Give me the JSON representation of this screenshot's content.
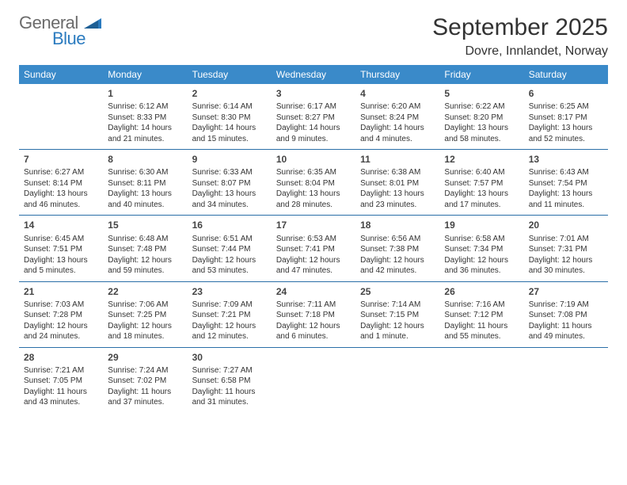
{
  "logo": {
    "word1": "General",
    "word2": "Blue"
  },
  "title": "September 2025",
  "location": "Dovre, Innlandet, Norway",
  "colors": {
    "header_bg": "#3a8ac9",
    "row_border": "#2b6fa8",
    "logo_gray": "#6b6b6b",
    "logo_blue": "#2b7bbf"
  },
  "day_names": [
    "Sunday",
    "Monday",
    "Tuesday",
    "Wednesday",
    "Thursday",
    "Friday",
    "Saturday"
  ],
  "weeks": [
    [
      null,
      {
        "n": "1",
        "sr": "Sunrise: 6:12 AM",
        "ss": "Sunset: 8:33 PM",
        "dl": "Daylight: 14 hours and 21 minutes."
      },
      {
        "n": "2",
        "sr": "Sunrise: 6:14 AM",
        "ss": "Sunset: 8:30 PM",
        "dl": "Daylight: 14 hours and 15 minutes."
      },
      {
        "n": "3",
        "sr": "Sunrise: 6:17 AM",
        "ss": "Sunset: 8:27 PM",
        "dl": "Daylight: 14 hours and 9 minutes."
      },
      {
        "n": "4",
        "sr": "Sunrise: 6:20 AM",
        "ss": "Sunset: 8:24 PM",
        "dl": "Daylight: 14 hours and 4 minutes."
      },
      {
        "n": "5",
        "sr": "Sunrise: 6:22 AM",
        "ss": "Sunset: 8:20 PM",
        "dl": "Daylight: 13 hours and 58 minutes."
      },
      {
        "n": "6",
        "sr": "Sunrise: 6:25 AM",
        "ss": "Sunset: 8:17 PM",
        "dl": "Daylight: 13 hours and 52 minutes."
      }
    ],
    [
      {
        "n": "7",
        "sr": "Sunrise: 6:27 AM",
        "ss": "Sunset: 8:14 PM",
        "dl": "Daylight: 13 hours and 46 minutes."
      },
      {
        "n": "8",
        "sr": "Sunrise: 6:30 AM",
        "ss": "Sunset: 8:11 PM",
        "dl": "Daylight: 13 hours and 40 minutes."
      },
      {
        "n": "9",
        "sr": "Sunrise: 6:33 AM",
        "ss": "Sunset: 8:07 PM",
        "dl": "Daylight: 13 hours and 34 minutes."
      },
      {
        "n": "10",
        "sr": "Sunrise: 6:35 AM",
        "ss": "Sunset: 8:04 PM",
        "dl": "Daylight: 13 hours and 28 minutes."
      },
      {
        "n": "11",
        "sr": "Sunrise: 6:38 AM",
        "ss": "Sunset: 8:01 PM",
        "dl": "Daylight: 13 hours and 23 minutes."
      },
      {
        "n": "12",
        "sr": "Sunrise: 6:40 AM",
        "ss": "Sunset: 7:57 PM",
        "dl": "Daylight: 13 hours and 17 minutes."
      },
      {
        "n": "13",
        "sr": "Sunrise: 6:43 AM",
        "ss": "Sunset: 7:54 PM",
        "dl": "Daylight: 13 hours and 11 minutes."
      }
    ],
    [
      {
        "n": "14",
        "sr": "Sunrise: 6:45 AM",
        "ss": "Sunset: 7:51 PM",
        "dl": "Daylight: 13 hours and 5 minutes."
      },
      {
        "n": "15",
        "sr": "Sunrise: 6:48 AM",
        "ss": "Sunset: 7:48 PM",
        "dl": "Daylight: 12 hours and 59 minutes."
      },
      {
        "n": "16",
        "sr": "Sunrise: 6:51 AM",
        "ss": "Sunset: 7:44 PM",
        "dl": "Daylight: 12 hours and 53 minutes."
      },
      {
        "n": "17",
        "sr": "Sunrise: 6:53 AM",
        "ss": "Sunset: 7:41 PM",
        "dl": "Daylight: 12 hours and 47 minutes."
      },
      {
        "n": "18",
        "sr": "Sunrise: 6:56 AM",
        "ss": "Sunset: 7:38 PM",
        "dl": "Daylight: 12 hours and 42 minutes."
      },
      {
        "n": "19",
        "sr": "Sunrise: 6:58 AM",
        "ss": "Sunset: 7:34 PM",
        "dl": "Daylight: 12 hours and 36 minutes."
      },
      {
        "n": "20",
        "sr": "Sunrise: 7:01 AM",
        "ss": "Sunset: 7:31 PM",
        "dl": "Daylight: 12 hours and 30 minutes."
      }
    ],
    [
      {
        "n": "21",
        "sr": "Sunrise: 7:03 AM",
        "ss": "Sunset: 7:28 PM",
        "dl": "Daylight: 12 hours and 24 minutes."
      },
      {
        "n": "22",
        "sr": "Sunrise: 7:06 AM",
        "ss": "Sunset: 7:25 PM",
        "dl": "Daylight: 12 hours and 18 minutes."
      },
      {
        "n": "23",
        "sr": "Sunrise: 7:09 AM",
        "ss": "Sunset: 7:21 PM",
        "dl": "Daylight: 12 hours and 12 minutes."
      },
      {
        "n": "24",
        "sr": "Sunrise: 7:11 AM",
        "ss": "Sunset: 7:18 PM",
        "dl": "Daylight: 12 hours and 6 minutes."
      },
      {
        "n": "25",
        "sr": "Sunrise: 7:14 AM",
        "ss": "Sunset: 7:15 PM",
        "dl": "Daylight: 12 hours and 1 minute."
      },
      {
        "n": "26",
        "sr": "Sunrise: 7:16 AM",
        "ss": "Sunset: 7:12 PM",
        "dl": "Daylight: 11 hours and 55 minutes."
      },
      {
        "n": "27",
        "sr": "Sunrise: 7:19 AM",
        "ss": "Sunset: 7:08 PM",
        "dl": "Daylight: 11 hours and 49 minutes."
      }
    ],
    [
      {
        "n": "28",
        "sr": "Sunrise: 7:21 AM",
        "ss": "Sunset: 7:05 PM",
        "dl": "Daylight: 11 hours and 43 minutes."
      },
      {
        "n": "29",
        "sr": "Sunrise: 7:24 AM",
        "ss": "Sunset: 7:02 PM",
        "dl": "Daylight: 11 hours and 37 minutes."
      },
      {
        "n": "30",
        "sr": "Sunrise: 7:27 AM",
        "ss": "Sunset: 6:58 PM",
        "dl": "Daylight: 11 hours and 31 minutes."
      },
      null,
      null,
      null,
      null
    ]
  ]
}
